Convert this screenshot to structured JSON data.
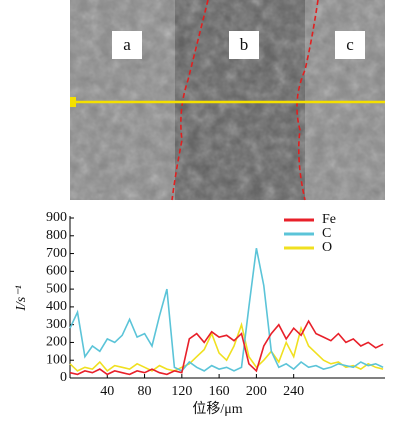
{
  "image_labels": [
    "a",
    "b",
    "c"
  ],
  "chart_data": {
    "type": "line",
    "x_label": "位移/μm",
    "y_label": "I/s⁻¹",
    "x": [
      0,
      8,
      16,
      24,
      32,
      40,
      48,
      56,
      64,
      72,
      80,
      88,
      96,
      104,
      112,
      120,
      128,
      136,
      144,
      152,
      160,
      168,
      176,
      184,
      192,
      200,
      208,
      216,
      224,
      232,
      240,
      248,
      256,
      264,
      272,
      280,
      288,
      296,
      304,
      312,
      320,
      328,
      336
    ],
    "series": [
      {
        "name": "Fe",
        "color": "#e8202a",
        "values": [
          30,
          20,
          40,
          30,
          50,
          20,
          40,
          30,
          20,
          40,
          30,
          50,
          30,
          20,
          40,
          30,
          220,
          250,
          200,
          260,
          230,
          240,
          210,
          250,
          80,
          40,
          180,
          250,
          300,
          220,
          280,
          240,
          320,
          250,
          230,
          210,
          250,
          200,
          220,
          180,
          200,
          170,
          190
        ]
      },
      {
        "name": "C",
        "color": "#5bc4d8",
        "values": [
          280,
          370,
          120,
          180,
          150,
          220,
          200,
          240,
          330,
          230,
          250,
          180,
          350,
          500,
          60,
          40,
          90,
          60,
          40,
          70,
          50,
          60,
          40,
          60,
          400,
          730,
          520,
          150,
          60,
          80,
          50,
          90,
          60,
          70,
          50,
          60,
          80,
          70,
          60,
          90,
          70,
          80,
          60
        ]
      },
      {
        "name": "O",
        "color": "#f0e020",
        "values": [
          80,
          40,
          60,
          50,
          90,
          40,
          70,
          60,
          50,
          80,
          60,
          40,
          70,
          50,
          40,
          60,
          80,
          120,
          160,
          250,
          140,
          100,
          180,
          300,
          120,
          60,
          100,
          150,
          90,
          200,
          120,
          280,
          180,
          140,
          100,
          80,
          90,
          60,
          70,
          50,
          80,
          60,
          50
        ]
      }
    ],
    "xlim": [
      0,
      338
    ],
    "ylim": [
      0,
      900
    ],
    "xticks": [
      40,
      80,
      120,
      160,
      200,
      240
    ],
    "yticks": [
      0,
      100,
      200,
      300,
      400,
      500,
      600,
      700,
      800,
      900
    ],
    "legend": "upper right"
  }
}
